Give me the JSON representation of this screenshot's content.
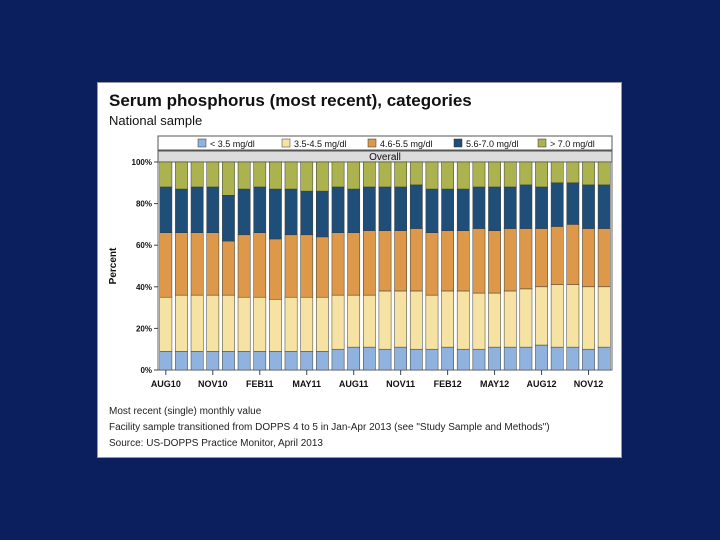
{
  "slide": {
    "background": "#0b1f5e"
  },
  "panel": {
    "title": "Serum phosphorus (most recent), categories",
    "subtitle": "National sample",
    "notes": [
      "Most recent (single) monthly value",
      "Facility sample transitioned from DOPPS 4 to 5 in Jan-Apr 2013 (see \"Study Sample and Methods\")",
      "Source: US-DOPPS Practice Monitor, April 2013"
    ]
  },
  "chart_data": {
    "type": "bar",
    "stacked": true,
    "percent_scale": true,
    "panel_label": "Overall",
    "ylabel": "Percent",
    "ylim": [
      0,
      100
    ],
    "y_ticks": [
      "0%",
      "20%",
      "40%",
      "60%",
      "80%",
      "100%"
    ],
    "x_tick_labels": [
      "AUG10",
      "NOV10",
      "FEB11",
      "MAY11",
      "AUG11",
      "NOV11",
      "FEB12",
      "MAY12",
      "AUG12",
      "NOV12"
    ],
    "grid": false,
    "legend_position": "top",
    "categories": [
      "Aug10",
      "Sep10",
      "Oct10",
      "Nov10",
      "Dec10",
      "Jan11",
      "Feb11",
      "Mar11",
      "Apr11",
      "May11",
      "Jun11",
      "Jul11",
      "Aug11",
      "Sep11",
      "Oct11",
      "Nov11",
      "Dec11",
      "Jan12",
      "Feb12",
      "Mar12",
      "Apr12",
      "May12",
      "Jun12",
      "Jul12",
      "Aug12",
      "Sep12",
      "Oct12",
      "Nov12",
      "Dec12"
    ],
    "series": [
      {
        "name": "< 3.5 mg/dl",
        "color": "#8fb3de",
        "values": [
          9,
          9,
          9,
          9,
          9,
          9,
          9,
          9,
          9,
          9,
          9,
          10,
          11,
          11,
          10,
          11,
          10,
          10,
          11,
          10,
          10,
          11,
          11,
          11,
          12,
          11,
          11,
          10,
          11
        ]
      },
      {
        "name": "3.5-4.5 mg/dl",
        "color": "#f6e3a3",
        "values": [
          26,
          27,
          27,
          27,
          27,
          26,
          26,
          25,
          26,
          26,
          26,
          26,
          25,
          25,
          28,
          27,
          28,
          26,
          27,
          28,
          27,
          26,
          27,
          28,
          28,
          30,
          30,
          30,
          29
        ]
      },
      {
        "name": "4.6-5.5 mg/dl",
        "color": "#dd9949",
        "values": [
          31,
          30,
          30,
          30,
          26,
          30,
          31,
          29,
          30,
          30,
          29,
          30,
          30,
          31,
          29,
          29,
          30,
          30,
          29,
          29,
          31,
          30,
          30,
          29,
          28,
          28,
          29,
          28,
          28
        ]
      },
      {
        "name": "5.6-7.0 mg/dl",
        "color": "#1f4e79",
        "values": [
          22,
          21,
          22,
          22,
          22,
          22,
          22,
          24,
          22,
          21,
          22,
          22,
          21,
          21,
          21,
          21,
          21,
          21,
          20,
          20,
          20,
          21,
          20,
          21,
          20,
          21,
          20,
          21,
          21
        ]
      },
      {
        "name": "> 7.0 mg/dl",
        "color": "#abb24e",
        "values": [
          12,
          13,
          12,
          12,
          16,
          13,
          12,
          13,
          13,
          14,
          14,
          12,
          13,
          12,
          12,
          12,
          11,
          13,
          13,
          13,
          12,
          12,
          12,
          11,
          12,
          10,
          10,
          11,
          11
        ]
      }
    ]
  }
}
